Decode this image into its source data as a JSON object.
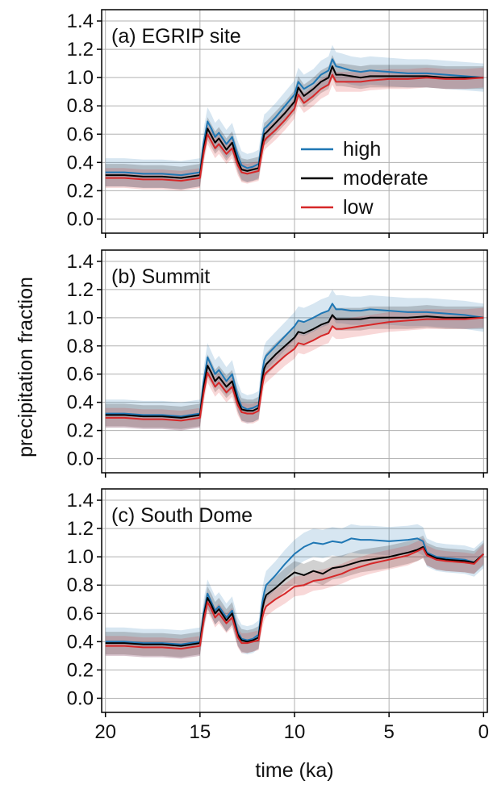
{
  "figure": {
    "ylabel": "precipitation fraction",
    "xlabel": "time (ka)",
    "legend": {
      "placement": "panel (a), right-center",
      "entries": [
        "high",
        "moderate",
        "low"
      ]
    }
  },
  "colors": {
    "high": "#1f77b4",
    "moderate": "#000000",
    "low": "#d62728",
    "grid": "#b0b0b0"
  },
  "chart_data": [
    {
      "type": "line",
      "title": "(a) EGRIP site",
      "xlabel": "time (ka)",
      "ylabel": "precipitation fraction",
      "xlim": [
        20.2,
        -0.2
      ],
      "ylim": [
        -0.1,
        1.48
      ],
      "xticks": [
        20,
        15,
        10,
        5,
        0
      ],
      "yticks": [
        "0.0",
        "0.2",
        "0.4",
        "0.6",
        "0.8",
        "1.0",
        "1.2",
        "1.4"
      ],
      "grid": true,
      "x": [
        20,
        19,
        18,
        17,
        16,
        15,
        14.8,
        14.6,
        14.4,
        14.2,
        14,
        13.6,
        13.3,
        13,
        12.8,
        12.5,
        12.2,
        11.9,
        11.7,
        11.6,
        11.5,
        11,
        10.5,
        10,
        9.8,
        9.5,
        9,
        8.6,
        8.2,
        8,
        7.8,
        7.5,
        7,
        6.5,
        6,
        5,
        4,
        3,
        2,
        1,
        0
      ],
      "series": [
        {
          "name": "high",
          "values": [
            0.33,
            0.33,
            0.32,
            0.32,
            0.31,
            0.33,
            0.54,
            0.69,
            0.64,
            0.58,
            0.61,
            0.53,
            0.58,
            0.45,
            0.38,
            0.36,
            0.37,
            0.39,
            0.57,
            0.64,
            0.65,
            0.72,
            0.8,
            0.88,
            0.97,
            0.92,
            0.96,
            1.02,
            1.05,
            1.13,
            1.08,
            1.07,
            1.05,
            1.04,
            1.05,
            1.04,
            1.03,
            1.03,
            1.02,
            1.01,
            1.0
          ]
        },
        {
          "name": "moderate",
          "values": [
            0.31,
            0.31,
            0.3,
            0.3,
            0.29,
            0.31,
            0.5,
            0.64,
            0.59,
            0.54,
            0.57,
            0.49,
            0.54,
            0.41,
            0.35,
            0.34,
            0.35,
            0.36,
            0.53,
            0.6,
            0.61,
            0.68,
            0.75,
            0.83,
            0.93,
            0.87,
            0.92,
            0.97,
            1.0,
            1.08,
            1.02,
            1.02,
            1.01,
            1.0,
            1.01,
            1.01,
            1.01,
            1.01,
            1.0,
            1.0,
            1.0
          ]
        },
        {
          "name": "low",
          "values": [
            0.29,
            0.29,
            0.28,
            0.28,
            0.27,
            0.29,
            0.47,
            0.6,
            0.55,
            0.5,
            0.53,
            0.46,
            0.5,
            0.38,
            0.33,
            0.32,
            0.33,
            0.34,
            0.49,
            0.55,
            0.57,
            0.63,
            0.7,
            0.78,
            0.88,
            0.82,
            0.87,
            0.92,
            0.95,
            1.02,
            0.97,
            0.97,
            0.97,
            0.97,
            0.98,
            0.99,
            0.99,
            1.0,
            0.99,
            0.99,
            1.0
          ]
        }
      ]
    },
    {
      "type": "line",
      "title": "(b) Summit",
      "xlabel": "time (ka)",
      "ylabel": "precipitation fraction",
      "xlim": [
        20.2,
        -0.2
      ],
      "ylim": [
        -0.1,
        1.48
      ],
      "xticks": [
        20,
        15,
        10,
        5,
        0
      ],
      "yticks": [
        "0.0",
        "0.2",
        "0.4",
        "0.6",
        "0.8",
        "1.0",
        "1.2",
        "1.4"
      ],
      "grid": true,
      "x": [
        20,
        19,
        18,
        17,
        16,
        15,
        14.8,
        14.6,
        14.4,
        14.2,
        14,
        13.6,
        13.3,
        13,
        12.8,
        12.5,
        12.2,
        11.9,
        11.7,
        11.6,
        11.5,
        11,
        10.5,
        10,
        9.8,
        9.5,
        9,
        8.6,
        8.2,
        8,
        7.8,
        7.5,
        7,
        6.5,
        6,
        5,
        4,
        3,
        2,
        1,
        0
      ],
      "series": [
        {
          "name": "high",
          "values": [
            0.32,
            0.32,
            0.31,
            0.31,
            0.3,
            0.32,
            0.55,
            0.72,
            0.66,
            0.6,
            0.63,
            0.55,
            0.6,
            0.44,
            0.37,
            0.35,
            0.36,
            0.38,
            0.62,
            0.7,
            0.73,
            0.8,
            0.87,
            0.94,
            0.98,
            0.97,
            1.0,
            1.03,
            1.05,
            1.1,
            1.06,
            1.06,
            1.05,
            1.05,
            1.06,
            1.05,
            1.04,
            1.04,
            1.03,
            1.02,
            1.0
          ]
        },
        {
          "name": "moderate",
          "values": [
            0.31,
            0.31,
            0.3,
            0.3,
            0.29,
            0.31,
            0.51,
            0.66,
            0.61,
            0.55,
            0.58,
            0.51,
            0.55,
            0.41,
            0.35,
            0.34,
            0.34,
            0.36,
            0.57,
            0.64,
            0.67,
            0.74,
            0.8,
            0.86,
            0.9,
            0.89,
            0.92,
            0.95,
            0.97,
            1.02,
            0.99,
            0.99,
            0.99,
            0.99,
            1.0,
            1.0,
            1.0,
            1.01,
            1.0,
            1.0,
            1.0
          ]
        },
        {
          "name": "low",
          "values": [
            0.29,
            0.29,
            0.28,
            0.28,
            0.27,
            0.29,
            0.47,
            0.61,
            0.56,
            0.51,
            0.54,
            0.47,
            0.51,
            0.38,
            0.33,
            0.32,
            0.32,
            0.34,
            0.52,
            0.59,
            0.61,
            0.67,
            0.73,
            0.78,
            0.82,
            0.81,
            0.84,
            0.87,
            0.89,
            0.94,
            0.92,
            0.92,
            0.93,
            0.94,
            0.95,
            0.97,
            0.98,
            0.99,
            0.99,
            0.99,
            1.0
          ]
        }
      ]
    },
    {
      "type": "line",
      "title": "(c) South Dome",
      "xlabel": "time (ka)",
      "ylabel": "precipitation fraction",
      "xlim": [
        20.2,
        -0.2
      ],
      "ylim": [
        -0.1,
        1.48
      ],
      "xticks": [
        20,
        15,
        10,
        5,
        0
      ],
      "yticks": [
        "0.0",
        "0.2",
        "0.4",
        "0.6",
        "0.8",
        "1.0",
        "1.2",
        "1.4"
      ],
      "grid": true,
      "x": [
        20,
        19,
        18,
        17,
        16,
        15,
        14.8,
        14.6,
        14.4,
        14.2,
        14,
        13.6,
        13.3,
        13,
        12.8,
        12.5,
        12.2,
        11.9,
        11.7,
        11.6,
        11.5,
        11,
        10.5,
        10,
        9.5,
        9,
        8.5,
        8,
        7.5,
        7,
        6.5,
        6,
        5,
        4,
        3.5,
        3.2,
        3,
        2.5,
        2,
        1,
        0.5,
        0
      ],
      "series": [
        {
          "name": "high",
          "values": [
            0.4,
            0.4,
            0.39,
            0.39,
            0.38,
            0.4,
            0.6,
            0.74,
            0.68,
            0.62,
            0.65,
            0.57,
            0.62,
            0.47,
            0.42,
            0.41,
            0.42,
            0.45,
            0.68,
            0.75,
            0.8,
            0.87,
            0.95,
            1.02,
            1.07,
            1.1,
            1.09,
            1.11,
            1.1,
            1.13,
            1.12,
            1.12,
            1.11,
            1.12,
            1.13,
            1.11,
            1.03,
            1.0,
            0.99,
            0.98,
            0.96,
            1.02
          ]
        },
        {
          "name": "moderate",
          "values": [
            0.39,
            0.39,
            0.38,
            0.38,
            0.37,
            0.39,
            0.58,
            0.71,
            0.66,
            0.6,
            0.63,
            0.55,
            0.6,
            0.45,
            0.41,
            0.4,
            0.41,
            0.43,
            0.63,
            0.69,
            0.73,
            0.78,
            0.84,
            0.89,
            0.87,
            0.9,
            0.88,
            0.92,
            0.93,
            0.95,
            0.97,
            0.98,
            1.0,
            1.03,
            1.05,
            1.07,
            1.02,
            0.99,
            0.98,
            0.97,
            0.96,
            1.02
          ]
        },
        {
          "name": "low",
          "values": [
            0.37,
            0.37,
            0.36,
            0.36,
            0.35,
            0.37,
            0.55,
            0.68,
            0.63,
            0.57,
            0.6,
            0.53,
            0.57,
            0.43,
            0.39,
            0.39,
            0.4,
            0.41,
            0.57,
            0.62,
            0.65,
            0.7,
            0.74,
            0.79,
            0.8,
            0.83,
            0.84,
            0.86,
            0.88,
            0.91,
            0.93,
            0.95,
            0.98,
            1.01,
            1.04,
            1.06,
            1.01,
            0.98,
            0.97,
            0.96,
            0.95,
            1.02
          ]
        }
      ]
    }
  ]
}
